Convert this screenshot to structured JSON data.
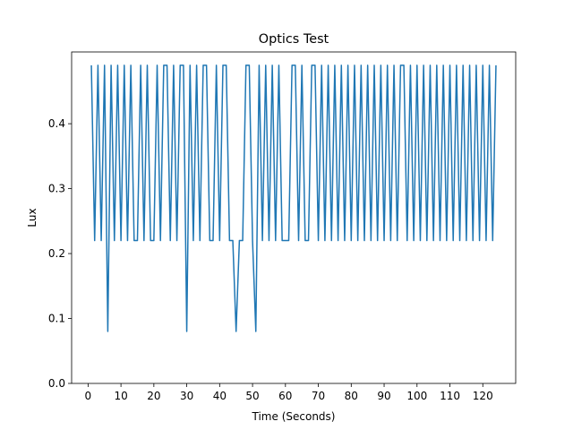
{
  "chart_data": {
    "type": "line",
    "title": "Optics Test",
    "x_label": "Time (Seconds)",
    "y_label": "Lux",
    "x": [
      1,
      2,
      3,
      4,
      5,
      6,
      7,
      8,
      9,
      10,
      11,
      12,
      13,
      14,
      15,
      16,
      17,
      18,
      19,
      20,
      21,
      22,
      23,
      24,
      25,
      26,
      27,
      28,
      29,
      30,
      31,
      32,
      33,
      34,
      35,
      36,
      37,
      38,
      39,
      40,
      41,
      42,
      43,
      44,
      45,
      46,
      47,
      48,
      49,
      50,
      51,
      52,
      53,
      54,
      55,
      56,
      57,
      58,
      59,
      60,
      61,
      62,
      63,
      64,
      65,
      66,
      67,
      68,
      69,
      70,
      71,
      72,
      73,
      74,
      75,
      76,
      77,
      78,
      79,
      80,
      81,
      82,
      83,
      84,
      85,
      86,
      87,
      88,
      89,
      90,
      91,
      92,
      93,
      94,
      95,
      96,
      97,
      98,
      99,
      100,
      101,
      102,
      103,
      104,
      105,
      106,
      107,
      108,
      109,
      110,
      111,
      112,
      113,
      114,
      115,
      116,
      117,
      118,
      119,
      120,
      121,
      122,
      123,
      124
    ],
    "series": [
      {
        "color": "#1f77b4",
        "values": [
          0.49,
          0.22,
          0.49,
          0.22,
          0.49,
          0.08,
          0.49,
          0.22,
          0.49,
          0.22,
          0.49,
          0.22,
          0.49,
          0.22,
          0.22,
          0.49,
          0.22,
          0.49,
          0.22,
          0.22,
          0.49,
          0.22,
          0.49,
          0.49,
          0.22,
          0.49,
          0.22,
          0.49,
          0.49,
          0.08,
          0.49,
          0.22,
          0.49,
          0.22,
          0.49,
          0.49,
          0.22,
          0.22,
          0.49,
          0.22,
          0.49,
          0.49,
          0.22,
          0.22,
          0.08,
          0.22,
          0.22,
          0.49,
          0.49,
          0.22,
          0.08,
          0.49,
          0.22,
          0.49,
          0.22,
          0.49,
          0.22,
          0.49,
          0.22,
          0.22,
          0.22,
          0.49,
          0.49,
          0.22,
          0.49,
          0.22,
          0.22,
          0.49,
          0.49,
          0.22,
          0.49,
          0.22,
          0.49,
          0.22,
          0.49,
          0.22,
          0.49,
          0.22,
          0.49,
          0.22,
          0.49,
          0.22,
          0.49,
          0.22,
          0.49,
          0.22,
          0.49,
          0.22,
          0.49,
          0.22,
          0.49,
          0.22,
          0.49,
          0.22,
          0.49,
          0.49,
          0.22,
          0.49,
          0.22,
          0.49,
          0.22,
          0.49,
          0.22,
          0.49,
          0.22,
          0.49,
          0.22,
          0.49,
          0.22,
          0.49,
          0.22,
          0.49,
          0.22,
          0.49,
          0.22,
          0.49,
          0.22,
          0.49,
          0.22,
          0.49,
          0.22,
          0.49,
          0.22,
          0.49
        ]
      }
    ],
    "xlim": [
      -5,
      130
    ],
    "ylim": [
      0,
      0.5105
    ],
    "xticks": [
      0,
      10,
      20,
      30,
      40,
      50,
      60,
      70,
      80,
      90,
      100,
      110,
      120
    ],
    "yticks": [
      {
        "value": 0,
        "label": "0.0"
      },
      0.1,
      0.2,
      0.3,
      0.4
    ]
  }
}
